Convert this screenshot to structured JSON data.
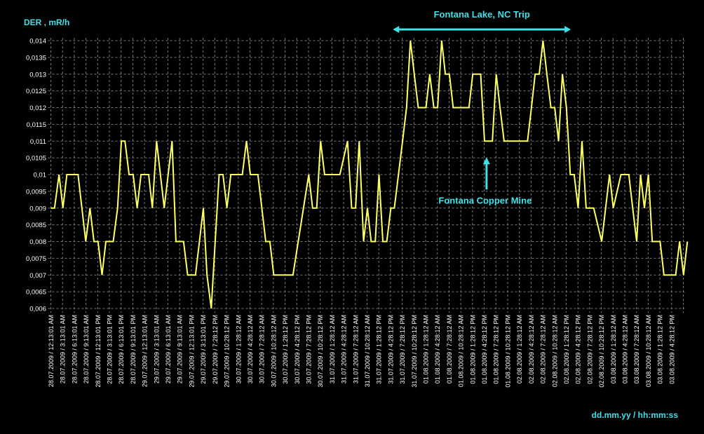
{
  "chart_data": {
    "type": "line",
    "ylabel": "DER , mR/h",
    "xlabel": "dd.mm.yy / hh:mm:ss",
    "ylim": [
      0.006,
      0.014
    ],
    "y_ticks": [
      "0,006",
      "0,0065",
      "0,007",
      "0,0075",
      "0,008",
      "0,0085",
      "0,009",
      "0,0095",
      "0,01",
      "0,0105",
      "0,011",
      "0,0115",
      "0,012",
      "0,0125",
      "0,013",
      "0,0135",
      "0,014"
    ],
    "x_ticks": [
      "28.07.2009 / 12:13:01 AM",
      "28.07.2009 / 3:13:01 AM",
      "28.07.2009 / 6:13:01 AM",
      "28.07.2009 / 9:13:01 AM",
      "28.07.2009 / 12:13:01 PM",
      "28.07.2009 / 3:13:01 PM",
      "28.07.2009 / 6:13:01 PM",
      "28.07.2009 / 9:13:01 PM",
      "29.07.2009 / 12:13:01 AM",
      "29.07.2009 / 3:13:01 AM",
      "29.07.2009 / 6:13:01 AM",
      "29.07.2009 / 9:13:01 AM",
      "29.07.2009 / 12:13:01 PM",
      "29.07.2009 / 3:13:01 PM",
      "29.07.2009 / 7:28:12 PM",
      "29.07.2009 / 10:28:12 PM",
      "30.07.2009 / 1:28:12 AM",
      "30.07.2009 / 4:28:12 AM",
      "30.07.2009 / 7:28:12 AM",
      "30.07.2009 / 10:28:12 AM",
      "30.07.2009 / 1:28:12 PM",
      "30.07.2009 / 4:28:12 PM",
      "30.07.2009 / 7:28:12 PM",
      "30.07.2009 / 10:28:12 PM",
      "31.07.2009 / 1:28:12 AM",
      "31.07.2009 / 4:28:12 AM",
      "31.07.2009 / 7:28:12 AM",
      "31.07.2009 / 10:28:12 AM",
      "31.07.2009 / 1:28:12 PM",
      "31.07.2009 / 4:28:12 PM",
      "31.07.2009 / 7:28:12 PM",
      "31.07.2009 / 10:28:12 PM",
      "01.08.2009 / 1:28:12 AM",
      "01.08.2009 / 4:28:12 AM",
      "01.08.2009 / 7:28:12 AM",
      "01.08.2009 / 10:28:12 AM",
      "01.08.2009 / 1:28:12 PM",
      "01.08.2009 / 4:28:12 PM",
      "01.08.2009 / 7:28:12 PM",
      "01.08.2009 / 10:28:12 PM",
      "02.08.2009 / 1:28:12 AM",
      "02.08.2009 / 4:28:12 AM",
      "02.08.2009 / 7:28:12 AM",
      "02.08.2009 / 10:28:12 AM",
      "02.08.2009 / 1:28:12 PM",
      "02.08.2009 / 4:28:12 PM",
      "02.08.2009 / 7:28:12 PM",
      "02.08.2009 / 10:28:12 PM",
      "03.08.2009 / 1:28:12 AM",
      "03.08.2009 / 4:28:12 AM",
      "03.08.2009 / 7:28:12 AM",
      "03.08.2009 / 10:28:12 AM",
      "03.08.2009 / 1:28:12 PM",
      "03.08.2009 / 4:28:12 PM"
    ],
    "series": [
      {
        "color": "#ffff66",
        "x_range": [
          0,
          53
        ],
        "points": [
          [
            0.0,
            0.009
          ],
          [
            0.32,
            0.009
          ],
          [
            0.7,
            0.01
          ],
          [
            1.03,
            0.009
          ],
          [
            1.37,
            0.01
          ],
          [
            2.32,
            0.01
          ],
          [
            2.98,
            0.008
          ],
          [
            3.34,
            0.009
          ],
          [
            3.68,
            0.008
          ],
          [
            4.03,
            0.008
          ],
          [
            4.37,
            0.007
          ],
          [
            4.7,
            0.008
          ],
          [
            5.33,
            0.008
          ],
          [
            5.7,
            0.009
          ],
          [
            6.02,
            0.011
          ],
          [
            6.33,
            0.011
          ],
          [
            6.68,
            0.01
          ],
          [
            7.03,
            0.01
          ],
          [
            7.37,
            0.009
          ],
          [
            7.7,
            0.01
          ],
          [
            8.35,
            0.01
          ],
          [
            8.67,
            0.009
          ],
          [
            9.03,
            0.011
          ],
          [
            9.68,
            0.009
          ],
          [
            10.35,
            0.011
          ],
          [
            10.68,
            0.008
          ],
          [
            11.33,
            0.008
          ],
          [
            11.68,
            0.007
          ],
          [
            12.35,
            0.007
          ],
          [
            13.02,
            0.009
          ],
          [
            13.33,
            0.007
          ],
          [
            13.7,
            0.006
          ],
          [
            14.37,
            0.01
          ],
          [
            14.7,
            0.01
          ],
          [
            15.03,
            0.009
          ],
          [
            15.37,
            0.01
          ],
          [
            16.35,
            0.01
          ],
          [
            16.7,
            0.011
          ],
          [
            17.03,
            0.01
          ],
          [
            17.68,
            0.01
          ],
          [
            18.35,
            0.008
          ],
          [
            18.7,
            0.008
          ],
          [
            19.03,
            0.007
          ],
          [
            20.33,
            0.007
          ],
          [
            20.67,
            0.007
          ],
          [
            22.02,
            0.01
          ],
          [
            22.35,
            0.009
          ],
          [
            22.7,
            0.009
          ],
          [
            23.03,
            0.011
          ],
          [
            23.37,
            0.01
          ],
          [
            24.68,
            0.01
          ],
          [
            25.33,
            0.011
          ],
          [
            25.68,
            0.009
          ],
          [
            26.02,
            0.009
          ],
          [
            26.33,
            0.011
          ],
          [
            26.7,
            0.008
          ],
          [
            27.03,
            0.009
          ],
          [
            27.35,
            0.008
          ],
          [
            27.7,
            0.008
          ],
          [
            28.02,
            0.01
          ],
          [
            28.35,
            0.008
          ],
          [
            28.68,
            0.008
          ],
          [
            29.03,
            0.009
          ],
          [
            29.33,
            0.009
          ],
          [
            30.03,
            0.011
          ],
          [
            30.37,
            0.012
          ],
          [
            30.7,
            0.014
          ],
          [
            31.03,
            0.013
          ],
          [
            31.37,
            0.012
          ],
          [
            31.7,
            0.012
          ],
          [
            32.03,
            0.012
          ],
          [
            32.35,
            0.013
          ],
          [
            32.7,
            0.012
          ],
          [
            33.02,
            0.012
          ],
          [
            33.37,
            0.014
          ],
          [
            33.68,
            0.013
          ],
          [
            34.03,
            0.013
          ],
          [
            34.35,
            0.012
          ],
          [
            35.35,
            0.012
          ],
          [
            35.7,
            0.012
          ],
          [
            36.02,
            0.013
          ],
          [
            36.7,
            0.013
          ],
          [
            37.03,
            0.011
          ],
          [
            37.7,
            0.011
          ],
          [
            38.03,
            0.013
          ],
          [
            38.35,
            0.012
          ],
          [
            38.7,
            0.011
          ],
          [
            39.7,
            0.011
          ],
          [
            40.7,
            0.011
          ],
          [
            41.03,
            0.012
          ],
          [
            41.35,
            0.013
          ],
          [
            41.7,
            0.013
          ],
          [
            42.02,
            0.014
          ],
          [
            42.35,
            0.013
          ],
          [
            42.7,
            0.012
          ],
          [
            43.02,
            0.012
          ],
          [
            43.35,
            0.011
          ],
          [
            43.68,
            0.013
          ],
          [
            44.02,
            0.012
          ],
          [
            44.35,
            0.01
          ],
          [
            44.68,
            0.01
          ],
          [
            45.02,
            0.009
          ],
          [
            45.35,
            0.011
          ],
          [
            45.7,
            0.009
          ],
          [
            46.35,
            0.009
          ],
          [
            47.03,
            0.008
          ],
          [
            47.7,
            0.01
          ],
          [
            48.02,
            0.009
          ],
          [
            48.68,
            0.01
          ],
          [
            49.35,
            0.01
          ],
          [
            49.68,
            0.009
          ],
          [
            50.02,
            0.008
          ],
          [
            50.35,
            0.01
          ],
          [
            50.68,
            0.009
          ],
          [
            51.02,
            0.01
          ],
          [
            51.35,
            0.008
          ],
          [
            52.02,
            0.008
          ],
          [
            52.35,
            0.007
          ],
          [
            53.35,
            0.007
          ],
          [
            53.68,
            0.008
          ],
          [
            54.02,
            0.007
          ],
          [
            54.35,
            0.008
          ]
        ]
      }
    ],
    "annotations": [
      {
        "text": "Fontana Lake, NC Trip",
        "type": "range-arrow",
        "x_from": 29.2,
        "x_to": 44.4
      },
      {
        "text": "Fontana Copper Mine",
        "type": "point-arrow",
        "x": 37.2,
        "y": 0.011
      }
    ],
    "annotation_color": "#40e0e8",
    "grid": true,
    "legend": "none"
  }
}
